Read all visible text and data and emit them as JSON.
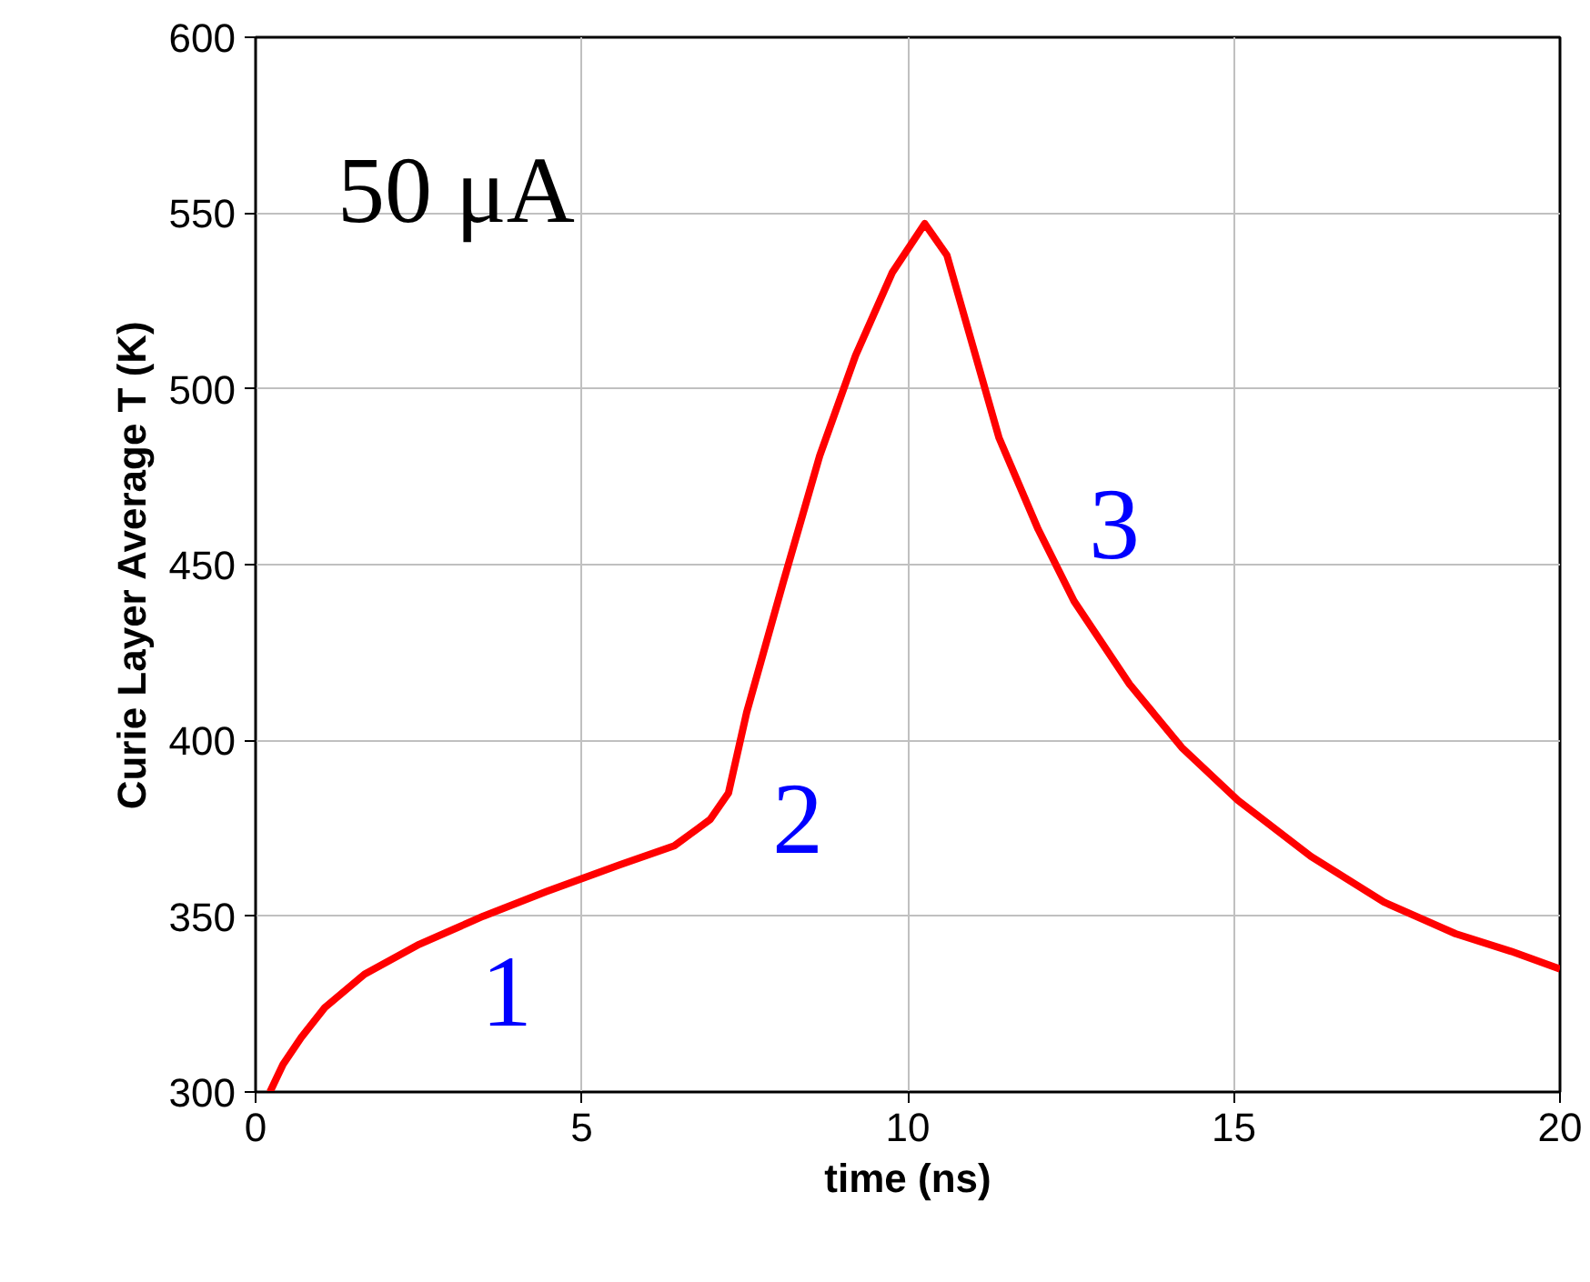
{
  "chart_data": {
    "type": "line",
    "xlabel": "time (ns)",
    "ylabel": "Curie Layer Average T (K)",
    "x": [
      0.22,
      0.42,
      0.7,
      1.06,
      1.67,
      2.51,
      3.49,
      4.46,
      5.58,
      6.42,
      6.97,
      7.25,
      7.53,
      8.09,
      8.65,
      9.2,
      9.76,
      10.26,
      10.6,
      11.0,
      11.4,
      12.0,
      12.55,
      13.4,
      14.2,
      15.06,
      16.18,
      17.3,
      18.4,
      19.25,
      20
    ],
    "series": [
      {
        "color": "#ff0000",
        "values": [
          300,
          307.8,
          315.5,
          324,
          333.5,
          342,
          350,
          357,
          364.6,
          370,
          377.5,
          385,
          408,
          445,
          481,
          509.5,
          533,
          547,
          538,
          512,
          486,
          460,
          439.6,
          416,
          398,
          383,
          367,
          354,
          345,
          340,
          335
        ]
      }
    ],
    "xlim": [
      0,
      20
    ],
    "ylim": [
      300,
      600
    ],
    "xticks": [
      0,
      5,
      10,
      15,
      20
    ],
    "yticks": [
      300,
      350,
      400,
      450,
      500,
      550,
      600
    ],
    "grid": true,
    "marker": "none",
    "line_style": "solid",
    "annotations": [
      "50 μA",
      "1",
      "2",
      "3"
    ]
  }
}
